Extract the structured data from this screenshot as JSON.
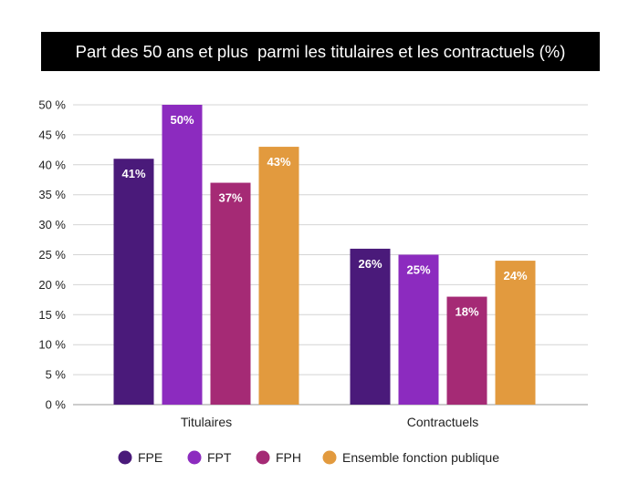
{
  "chart_data": {
    "type": "bar",
    "title": "Part des 50 ans et plus  parmi les titulaires et les contractuels (%)",
    "categories": [
      "Titulaires",
      "Contractuels"
    ],
    "series": [
      {
        "name": "FPE",
        "values": [
          41,
          26
        ],
        "labels": [
          "41%",
          "26%"
        ],
        "color": "#4a1a7a"
      },
      {
        "name": "FPT",
        "values": [
          50,
          25
        ],
        "labels": [
          "50%",
          "25%"
        ],
        "color": "#8c2bbf"
      },
      {
        "name": "FPH",
        "values": [
          37,
          18
        ],
        "labels": [
          "37%",
          "18%"
        ],
        "color": "#a52a75"
      },
      {
        "name": "Ensemble fonction publique",
        "values": [
          43,
          24
        ],
        "labels": [
          "43%",
          "24%"
        ],
        "color": "#e29a3e"
      }
    ],
    "ylim": [
      0,
      50
    ],
    "yticks": [
      0,
      5,
      10,
      15,
      20,
      25,
      30,
      35,
      40,
      45,
      50
    ],
    "ytick_labels": [
      "0 %",
      "5 %",
      "10 %",
      "15 %",
      "20 %",
      "25 %",
      "30 %",
      "35 %",
      "40 %",
      "45 %",
      "50 %"
    ],
    "grid": true,
    "legend_position": "bottom"
  }
}
